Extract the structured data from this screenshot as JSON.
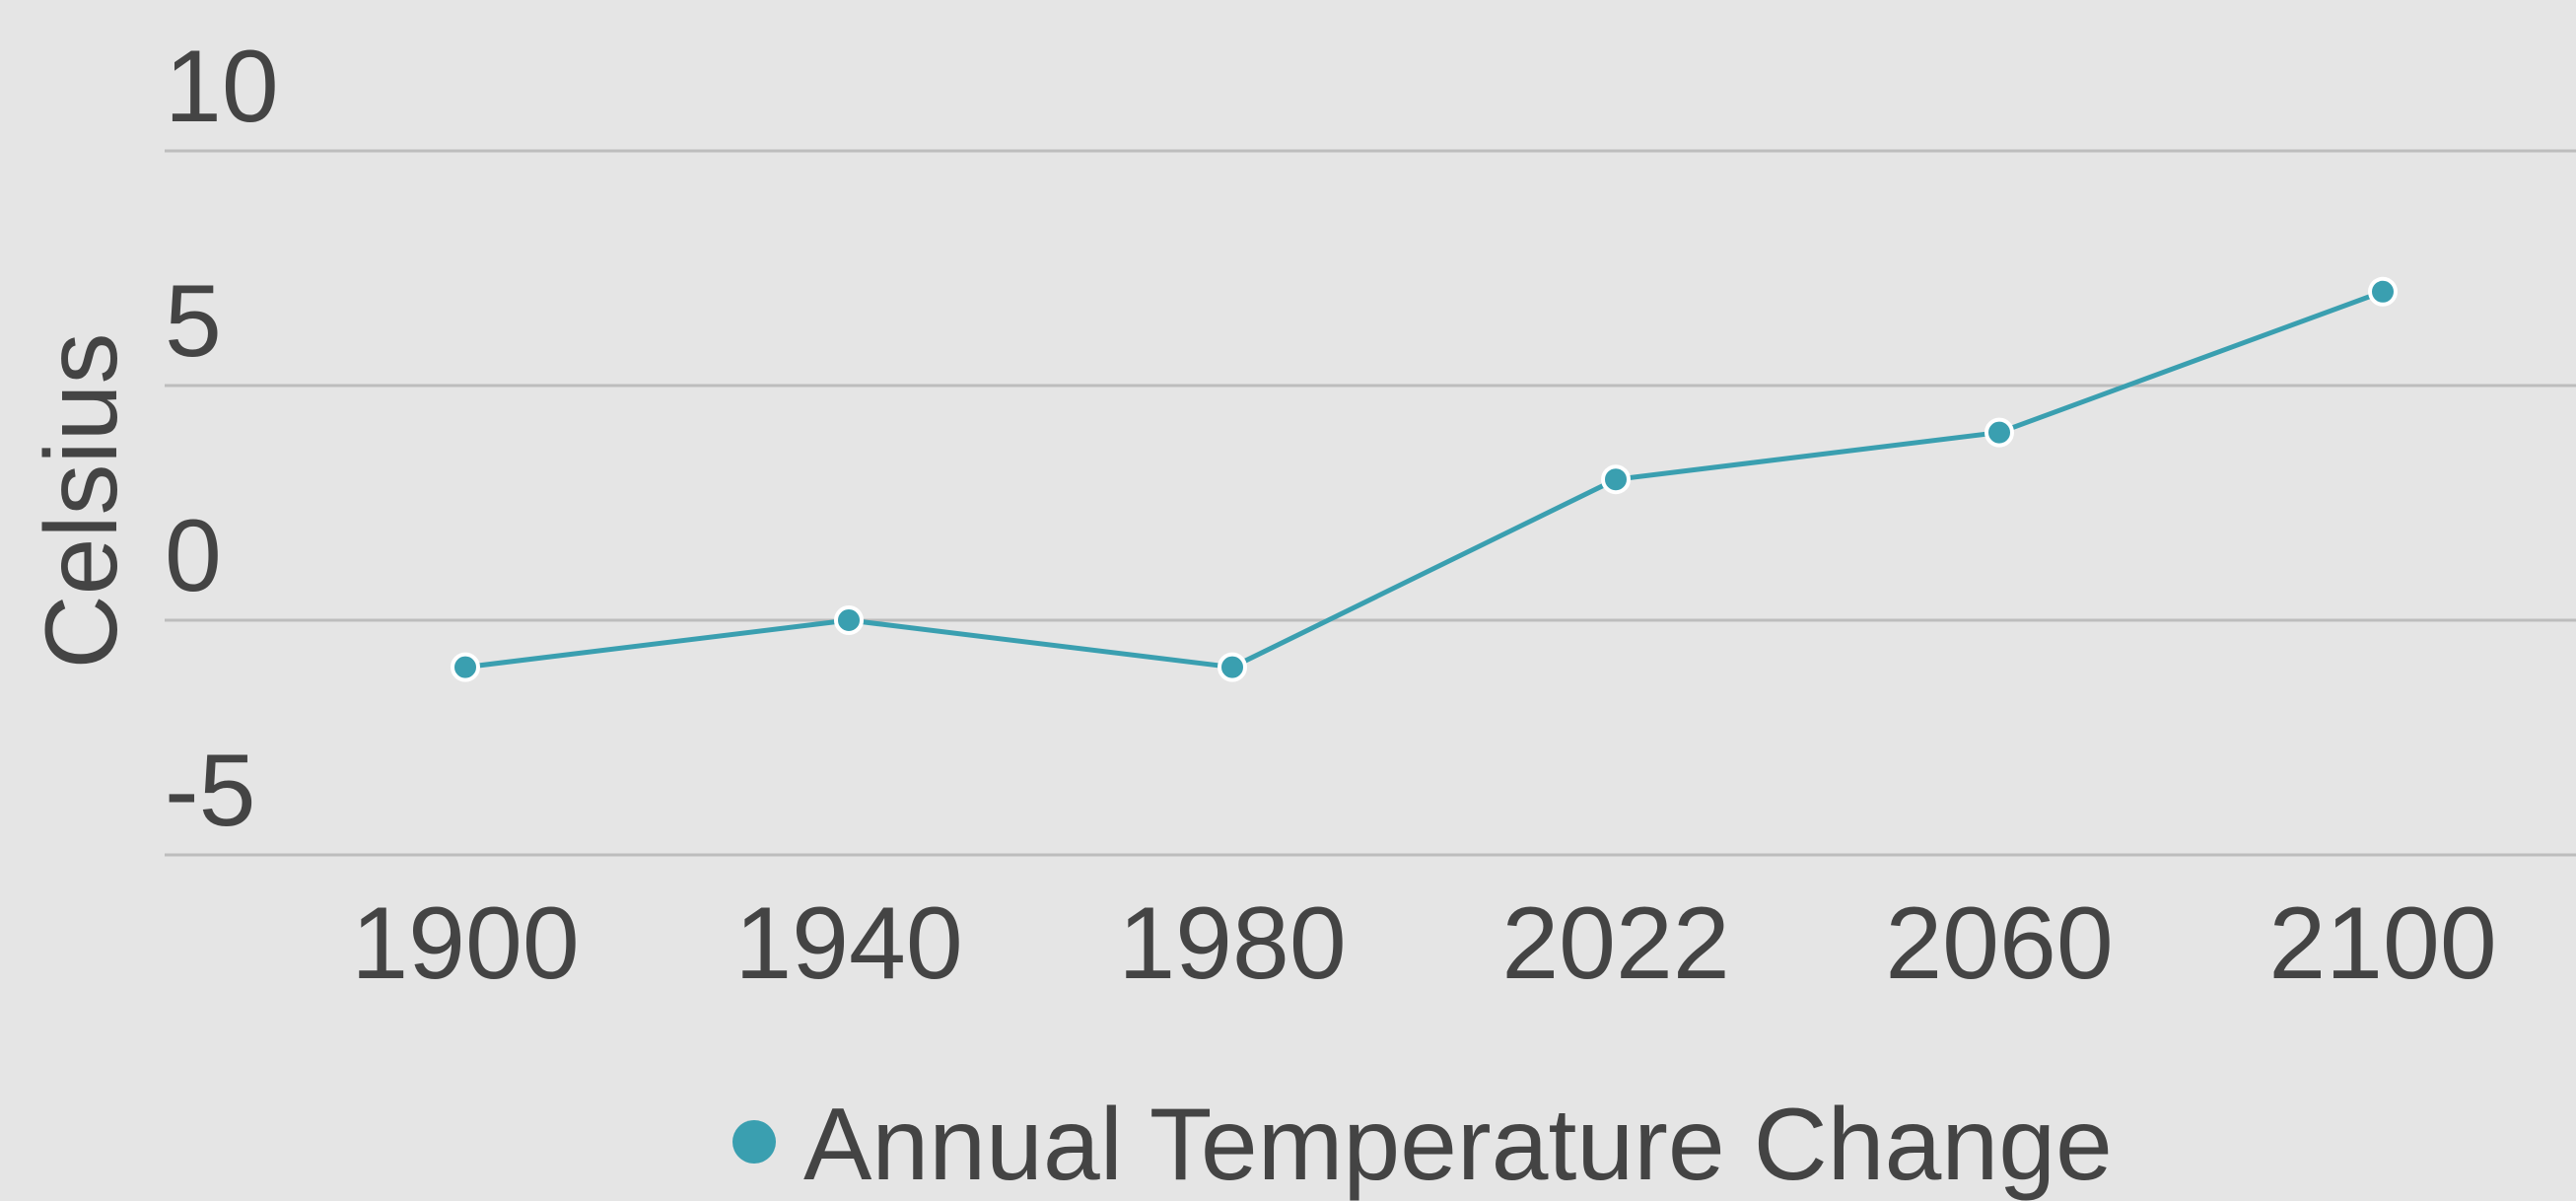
{
  "chart_data": {
    "type": "line",
    "categories": [
      "1900",
      "1940",
      "1980",
      "2022",
      "2060",
      "2100"
    ],
    "series": [
      {
        "name": "Annual Temperature Change",
        "color": "#3a9fb0",
        "values": [
          -1,
          0,
          -1,
          3,
          4,
          7
        ]
      }
    ],
    "ylabel": "Celsius",
    "ylim": [
      -5,
      10
    ],
    "yticks": [
      -5,
      0,
      5,
      10
    ],
    "grid": true,
    "legend": "bottom"
  }
}
